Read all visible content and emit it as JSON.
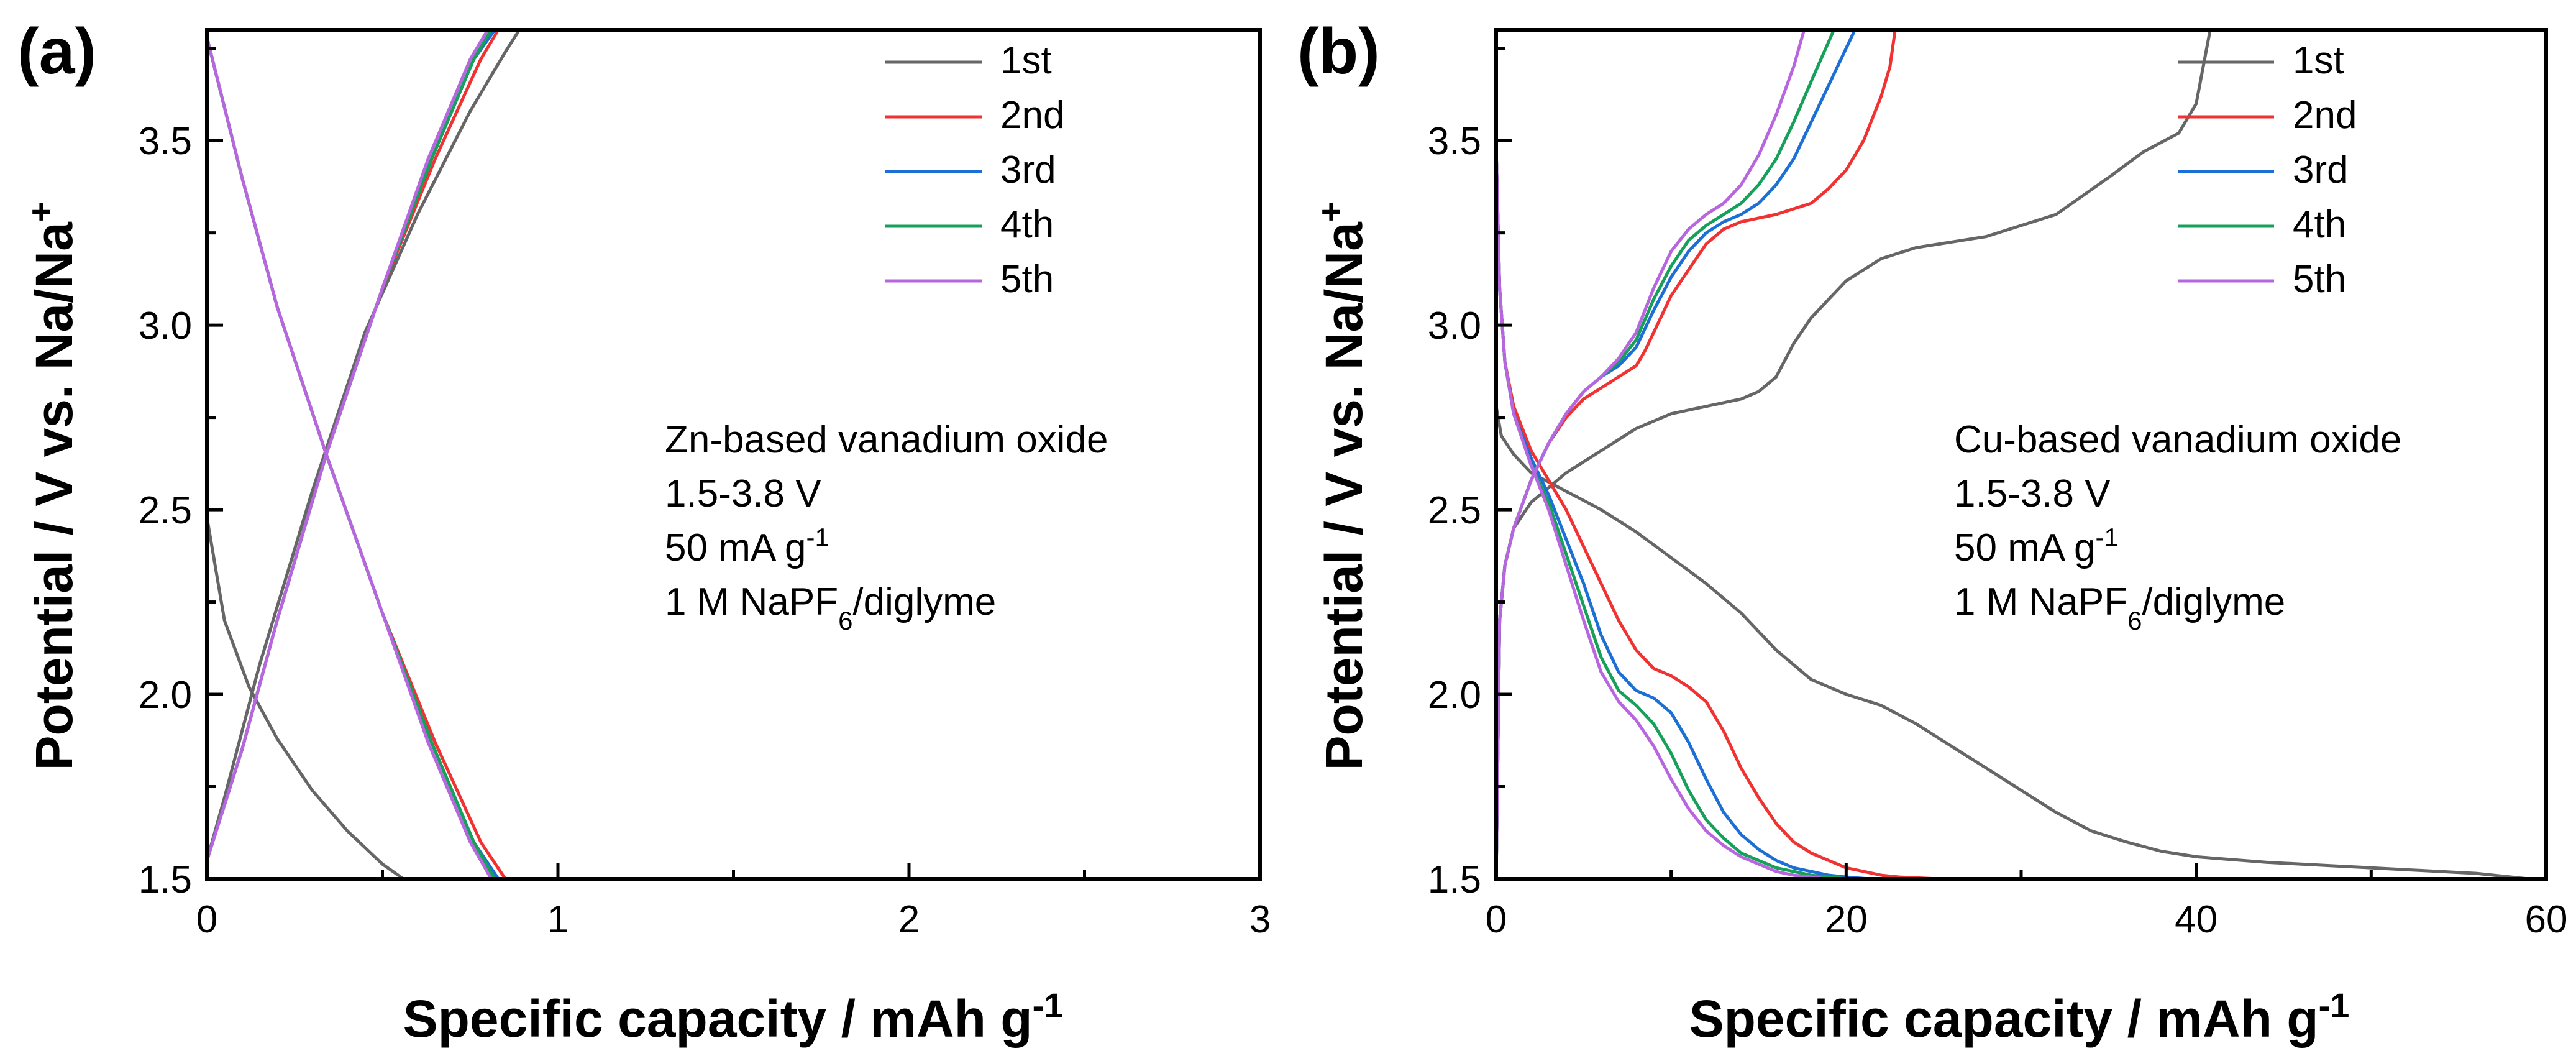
{
  "chart_data": [
    {
      "panel_label": "(a)",
      "type": "line",
      "xlabel": "Specific capacity / mAh g",
      "xlabel_sup": "-1",
      "ylabel": "Potential / V vs. Na/Na",
      "ylabel_sup": "+",
      "xlim": [
        0,
        3
      ],
      "ylim": [
        1.5,
        3.8
      ],
      "xticks": [
        0,
        1,
        2,
        3
      ],
      "xtick_labels": [
        "0",
        "1",
        "2",
        "3"
      ],
      "yticks": [
        1.5,
        2.0,
        2.5,
        3.0,
        3.5
      ],
      "ytick_labels": [
        "1.5",
        "2.0",
        "2.5",
        "3.0",
        "3.5"
      ],
      "legend_position": "top-right",
      "annotation": {
        "line1": "Zn-based vanadium oxide",
        "line2": "1.5-3.8 V",
        "line3_main": "50 mA g",
        "line3_sup": "-1",
        "line4_pre": "1 M NaPF",
        "line4_sub": "6",
        "line4_post": "/diglyme"
      },
      "series": [
        {
          "name": "1st",
          "color": "#666666",
          "segments": [
            {
              "x": [
                0,
                0.05,
                0.12,
                0.2,
                0.3,
                0.4,
                0.5,
                0.56
              ],
              "y": [
                2.48,
                2.2,
                2.02,
                1.88,
                1.74,
                1.63,
                1.54,
                1.5
              ]
            },
            {
              "x": [
                0,
                0.05,
                0.15,
                0.3,
                0.45,
                0.6,
                0.75,
                0.85,
                0.89
              ],
              "y": [
                1.55,
                1.72,
                2.08,
                2.55,
                2.98,
                3.3,
                3.58,
                3.74,
                3.8
              ]
            }
          ]
        },
        {
          "name": "2nd",
          "color": "#f03232",
          "segments": [
            {
              "x": [
                0,
                0.1,
                0.2,
                0.34,
                0.5,
                0.65,
                0.78,
                0.85
              ],
              "y": [
                3.78,
                3.4,
                3.05,
                2.65,
                2.22,
                1.87,
                1.6,
                1.5
              ]
            },
            {
              "x": [
                0,
                0.1,
                0.2,
                0.34,
                0.5,
                0.65,
                0.78,
                0.83
              ],
              "y": [
                1.55,
                1.85,
                2.2,
                2.65,
                3.1,
                3.45,
                3.72,
                3.8
              ]
            }
          ]
        },
        {
          "name": "3rd",
          "color": "#1c6fd4",
          "segments": [
            {
              "x": [
                0,
                0.1,
                0.2,
                0.34,
                0.5,
                0.64,
                0.76,
                0.83
              ],
              "y": [
                3.78,
                3.4,
                3.05,
                2.65,
                2.22,
                1.87,
                1.6,
                1.5
              ]
            },
            {
              "x": [
                0,
                0.1,
                0.2,
                0.34,
                0.5,
                0.64,
                0.76,
                0.82
              ],
              "y": [
                1.55,
                1.85,
                2.2,
                2.65,
                3.1,
                3.45,
                3.72,
                3.8
              ]
            }
          ]
        },
        {
          "name": "4th",
          "color": "#16a05a",
          "segments": [
            {
              "x": [
                0,
                0.1,
                0.2,
                0.34,
                0.5,
                0.64,
                0.76,
                0.82
              ],
              "y": [
                3.78,
                3.4,
                3.05,
                2.65,
                2.22,
                1.87,
                1.6,
                1.5
              ]
            },
            {
              "x": [
                0,
                0.1,
                0.2,
                0.34,
                0.5,
                0.64,
                0.76,
                0.81
              ],
              "y": [
                1.55,
                1.85,
                2.2,
                2.65,
                3.1,
                3.45,
                3.72,
                3.8
              ]
            }
          ]
        },
        {
          "name": "5th",
          "color": "#b866e0",
          "segments": [
            {
              "x": [
                0,
                0.1,
                0.2,
                0.34,
                0.5,
                0.63,
                0.75,
                0.81
              ],
              "y": [
                3.78,
                3.4,
                3.05,
                2.65,
                2.22,
                1.87,
                1.6,
                1.5
              ]
            },
            {
              "x": [
                0,
                0.1,
                0.2,
                0.34,
                0.5,
                0.63,
                0.75,
                0.8
              ],
              "y": [
                1.55,
                1.85,
                2.2,
                2.65,
                3.1,
                3.45,
                3.72,
                3.8
              ]
            }
          ]
        }
      ]
    },
    {
      "panel_label": "(b)",
      "type": "line",
      "xlabel": "Specific capacity / mAh g",
      "xlabel_sup": "-1",
      "ylabel": "Potential / V vs. Na/Na",
      "ylabel_sup": "+",
      "xlim": [
        0,
        60
      ],
      "ylim": [
        1.5,
        3.8
      ],
      "xticks": [
        0,
        20,
        40,
        60
      ],
      "xtick_labels": [
        "0",
        "20",
        "40",
        "60"
      ],
      "yticks": [
        1.5,
        2.0,
        2.5,
        3.0,
        3.5
      ],
      "ytick_labels": [
        "1.5",
        "2.0",
        "2.5",
        "3.0",
        "3.5"
      ],
      "legend_position": "top-right",
      "annotation": {
        "line1": "Cu-based vanadium oxide",
        "line2": "1.5-3.8 V",
        "line3_main": "50 mA g",
        "line3_sup": "-1",
        "line4_pre": "1 M NaPF",
        "line4_sub": "6",
        "line4_post": "/diglyme"
      },
      "series": [
        {
          "name": "1st",
          "color": "#666666",
          "segments": [
            {
              "x": [
                0,
                0.3,
                1,
                2,
                4,
                6,
                8,
                10,
                12,
                14,
                16,
                18,
                20,
                22,
                24,
                26,
                28,
                30,
                32,
                34,
                36,
                38,
                40,
                44,
                48,
                52,
                56,
                59
              ],
              "y": [
                2.78,
                2.7,
                2.65,
                2.6,
                2.55,
                2.5,
                2.44,
                2.37,
                2.3,
                2.22,
                2.12,
                2.04,
                2.0,
                1.97,
                1.92,
                1.86,
                1.8,
                1.74,
                1.68,
                1.63,
                1.6,
                1.575,
                1.56,
                1.545,
                1.535,
                1.525,
                1.515,
                1.5
              ]
            },
            {
              "x": [
                0,
                0.2,
                0.5,
                1,
                2,
                3,
                4,
                6,
                8,
                10,
                12,
                14,
                15,
                16,
                17,
                18,
                20,
                22,
                24,
                28,
                32,
                35,
                37,
                39,
                40,
                40.8
              ],
              "y": [
                1.5,
                2.2,
                2.35,
                2.45,
                2.52,
                2.56,
                2.6,
                2.66,
                2.72,
                2.76,
                2.78,
                2.8,
                2.82,
                2.86,
                2.95,
                3.02,
                3.12,
                3.18,
                3.21,
                3.24,
                3.3,
                3.4,
                3.47,
                3.52,
                3.6,
                3.8
              ]
            }
          ]
        },
        {
          "name": "2nd",
          "color": "#f03232",
          "segments": [
            {
              "x": [
                0,
                0.2,
                0.5,
                1,
                2,
                3,
                4,
                5,
                6,
                7,
                8,
                9,
                10,
                11,
                12,
                13,
                14,
                15,
                16,
                17,
                18,
                19,
                20,
                21,
                22,
                23,
                25.3
              ],
              "y": [
                3.48,
                3.1,
                2.9,
                2.78,
                2.66,
                2.58,
                2.5,
                2.4,
                2.3,
                2.2,
                2.12,
                2.07,
                2.05,
                2.02,
                1.98,
                1.9,
                1.8,
                1.72,
                1.65,
                1.6,
                1.57,
                1.55,
                1.53,
                1.52,
                1.51,
                1.505,
                1.5
              ]
            },
            {
              "x": [
                0,
                0.2,
                0.5,
                1,
                2,
                3,
                4,
                5,
                6,
                7,
                8,
                8.5,
                9,
                10,
                11,
                12,
                13,
                14,
                16,
                18,
                19,
                20,
                21,
                21.5,
                22,
                22.5,
                22.8
              ],
              "y": [
                1.5,
                2.2,
                2.35,
                2.45,
                2.58,
                2.68,
                2.75,
                2.8,
                2.83,
                2.86,
                2.89,
                2.93,
                2.98,
                3.08,
                3.15,
                3.22,
                3.26,
                3.28,
                3.3,
                3.33,
                3.37,
                3.42,
                3.5,
                3.56,
                3.62,
                3.7,
                3.8
              ]
            }
          ]
        },
        {
          "name": "3rd",
          "color": "#1c6fd4",
          "segments": [
            {
              "x": [
                0,
                0.2,
                0.5,
                1,
                2,
                3,
                4,
                5,
                6,
                7,
                8,
                9,
                10,
                11,
                12,
                13,
                14,
                15,
                16,
                17,
                18,
                19,
                20,
                21.3
              ],
              "y": [
                3.48,
                3.1,
                2.9,
                2.76,
                2.64,
                2.54,
                2.42,
                2.3,
                2.16,
                2.06,
                2.01,
                1.99,
                1.95,
                1.87,
                1.77,
                1.68,
                1.62,
                1.58,
                1.55,
                1.53,
                1.52,
                1.51,
                1.505,
                1.5
              ]
            },
            {
              "x": [
                0,
                0.2,
                0.5,
                1,
                2,
                3,
                4,
                5,
                6,
                7,
                8,
                9,
                10,
                11,
                12,
                13,
                14,
                15,
                16,
                17,
                18,
                19,
                20.5
              ],
              "y": [
                1.5,
                2.2,
                2.35,
                2.45,
                2.58,
                2.68,
                2.76,
                2.82,
                2.86,
                2.89,
                2.94,
                3.04,
                3.13,
                3.2,
                3.25,
                3.28,
                3.3,
                3.33,
                3.38,
                3.45,
                3.55,
                3.65,
                3.8
              ]
            }
          ]
        },
        {
          "name": "4th",
          "color": "#16a05a",
          "segments": [
            {
              "x": [
                0,
                0.2,
                0.5,
                1,
                2,
                3,
                4,
                5,
                6,
                7,
                8,
                9,
                10,
                11,
                12,
                13,
                14,
                15,
                16,
                17,
                18,
                19,
                20
              ],
              "y": [
                3.48,
                3.1,
                2.9,
                2.76,
                2.62,
                2.52,
                2.38,
                2.24,
                2.1,
                2.01,
                1.97,
                1.92,
                1.84,
                1.74,
                1.66,
                1.61,
                1.57,
                1.55,
                1.53,
                1.52,
                1.51,
                1.505,
                1.5
              ]
            },
            {
              "x": [
                0,
                0.2,
                0.5,
                1,
                2,
                3,
                4,
                5,
                6,
                7,
                8,
                9,
                10,
                11,
                12,
                13,
                14,
                15,
                16,
                17,
                18,
                19.3
              ],
              "y": [
                1.5,
                2.2,
                2.35,
                2.45,
                2.58,
                2.68,
                2.76,
                2.82,
                2.86,
                2.9,
                2.96,
                3.07,
                3.16,
                3.23,
                3.27,
                3.3,
                3.33,
                3.38,
                3.45,
                3.55,
                3.66,
                3.8
              ]
            }
          ]
        },
        {
          "name": "5th",
          "color": "#b866e0",
          "segments": [
            {
              "x": [
                0,
                0.2,
                0.5,
                1,
                2,
                3,
                4,
                5,
                6,
                7,
                8,
                9,
                10,
                11,
                12,
                13,
                14,
                15,
                16,
                17,
                18,
                18.8
              ],
              "y": [
                3.48,
                3.1,
                2.9,
                2.76,
                2.62,
                2.5,
                2.35,
                2.2,
                2.06,
                1.98,
                1.93,
                1.86,
                1.77,
                1.69,
                1.63,
                1.59,
                1.56,
                1.54,
                1.52,
                1.51,
                1.505,
                1.5
              ]
            },
            {
              "x": [
                0,
                0.2,
                0.5,
                1,
                2,
                3,
                4,
                5,
                6,
                7,
                8,
                9,
                10,
                11,
                12,
                13,
                14,
                15,
                16,
                17,
                17.6
              ],
              "y": [
                1.5,
                2.2,
                2.35,
                2.45,
                2.58,
                2.68,
                2.76,
                2.82,
                2.86,
                2.91,
                2.98,
                3.1,
                3.2,
                3.26,
                3.3,
                3.33,
                3.38,
                3.46,
                3.57,
                3.7,
                3.8
              ]
            }
          ]
        }
      ]
    }
  ]
}
